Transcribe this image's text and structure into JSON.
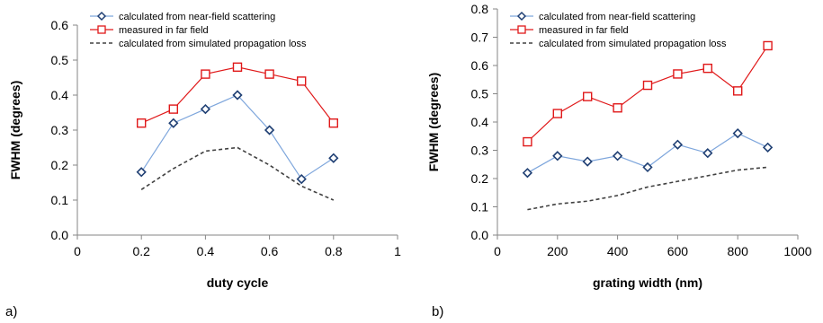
{
  "chart_data": [
    {
      "type": "line",
      "panel_label": "a)",
      "xlabel": "duty cycle",
      "ylabel": "FWHM (degrees)",
      "xlim": [
        0,
        1
      ],
      "ylim": [
        0,
        0.6
      ],
      "xticks": [
        "0",
        "0.2",
        "0.4",
        "0.6",
        "0.8",
        "1"
      ],
      "xtick_values": [
        0,
        0.2,
        0.4,
        0.6,
        0.8,
        1
      ],
      "yticks": [
        "0.0",
        "0.1",
        "0.2",
        "0.3",
        "0.4",
        "0.5",
        "0.6"
      ],
      "ytick_values": [
        0,
        0.1,
        0.2,
        0.3,
        0.4,
        0.5,
        0.6
      ],
      "grid": false,
      "legend_position": "top-left",
      "series": [
        {
          "name": "calculated from near-field scattering",
          "marker": "diamond",
          "color": "#1f3f73",
          "line_color": "#7ea6dc",
          "x": [
            0.2,
            0.3,
            0.4,
            0.5,
            0.6,
            0.7,
            0.8
          ],
          "y": [
            0.18,
            0.32,
            0.36,
            0.4,
            0.3,
            0.16,
            0.22
          ]
        },
        {
          "name": "measured in far field",
          "marker": "square",
          "color": "#e0191a",
          "line_color": "#e0191a",
          "x": [
            0.2,
            0.3,
            0.4,
            0.5,
            0.6,
            0.7,
            0.8
          ],
          "y": [
            0.32,
            0.36,
            0.46,
            0.48,
            0.46,
            0.44,
            0.32
          ]
        },
        {
          "name": "calculated from simulated propagation loss",
          "marker": "none",
          "dashed": true,
          "color": "#404040",
          "line_color": "#404040",
          "x": [
            0.2,
            0.3,
            0.4,
            0.5,
            0.6,
            0.7,
            0.8
          ],
          "y": [
            0.13,
            0.19,
            0.24,
            0.25,
            0.2,
            0.14,
            0.1
          ]
        }
      ]
    },
    {
      "type": "line",
      "panel_label": "b)",
      "xlabel": "grating width (nm)",
      "ylabel": "FWHM (degrees)",
      "xlim": [
        0,
        1000
      ],
      "ylim": [
        0,
        0.8
      ],
      "xticks": [
        "0",
        "200",
        "400",
        "600",
        "800",
        "1000"
      ],
      "xtick_values": [
        0,
        200,
        400,
        600,
        800,
        1000
      ],
      "yticks": [
        "0.0",
        "0.1",
        "0.2",
        "0.3",
        "0.4",
        "0.5",
        "0.6",
        "0.7",
        "0.8"
      ],
      "ytick_values": [
        0,
        0.1,
        0.2,
        0.3,
        0.4,
        0.5,
        0.6,
        0.7,
        0.8
      ],
      "grid": false,
      "legend_position": "top-left",
      "series": [
        {
          "name": "calculated from near-field scattering",
          "marker": "diamond",
          "color": "#1f3f73",
          "line_color": "#7ea6dc",
          "x": [
            100,
            200,
            300,
            400,
            500,
            600,
            700,
            800,
            900
          ],
          "y": [
            0.22,
            0.28,
            0.26,
            0.28,
            0.24,
            0.32,
            0.29,
            0.36,
            0.31
          ]
        },
        {
          "name": "measured in far field",
          "marker": "square",
          "color": "#e0191a",
          "line_color": "#e0191a",
          "x": [
            100,
            200,
            300,
            400,
            500,
            600,
            700,
            800,
            900
          ],
          "y": [
            0.33,
            0.43,
            0.49,
            0.45,
            0.53,
            0.57,
            0.59,
            0.51,
            0.67
          ]
        },
        {
          "name": "calculated from simulated propagation loss",
          "marker": "none",
          "dashed": true,
          "color": "#404040",
          "line_color": "#404040",
          "x": [
            100,
            200,
            300,
            400,
            500,
            600,
            700,
            800,
            900
          ],
          "y": [
            0.09,
            0.11,
            0.12,
            0.14,
            0.17,
            0.19,
            0.21,
            0.23,
            0.24
          ]
        }
      ]
    }
  ]
}
